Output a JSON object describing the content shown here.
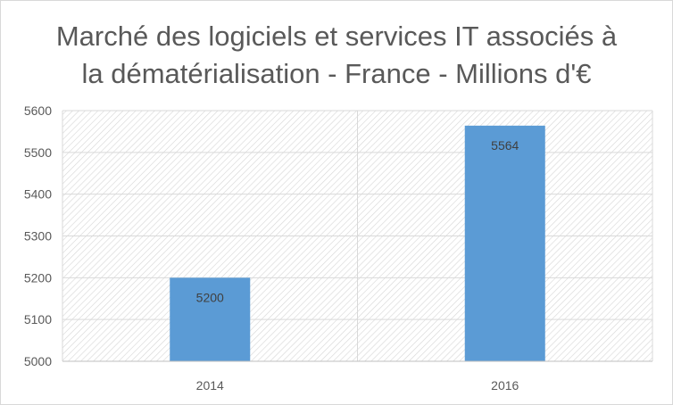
{
  "chart_data": {
    "type": "bar",
    "title_lines": [
      "Marché des logiciels et services IT associés à",
      "la dématérialisation - France - Millions d'€"
    ],
    "categories": [
      "2014",
      "2016"
    ],
    "values": [
      5200,
      5564
    ],
    "data_labels": [
      "5200",
      "5564"
    ],
    "ylim": [
      5000,
      5600
    ],
    "y_ticks": [
      "5000",
      "5100",
      "5200",
      "5300",
      "5400",
      "5500",
      "5600"
    ],
    "grid": true,
    "legend": "none",
    "bar_color": "#5b9bd5"
  }
}
